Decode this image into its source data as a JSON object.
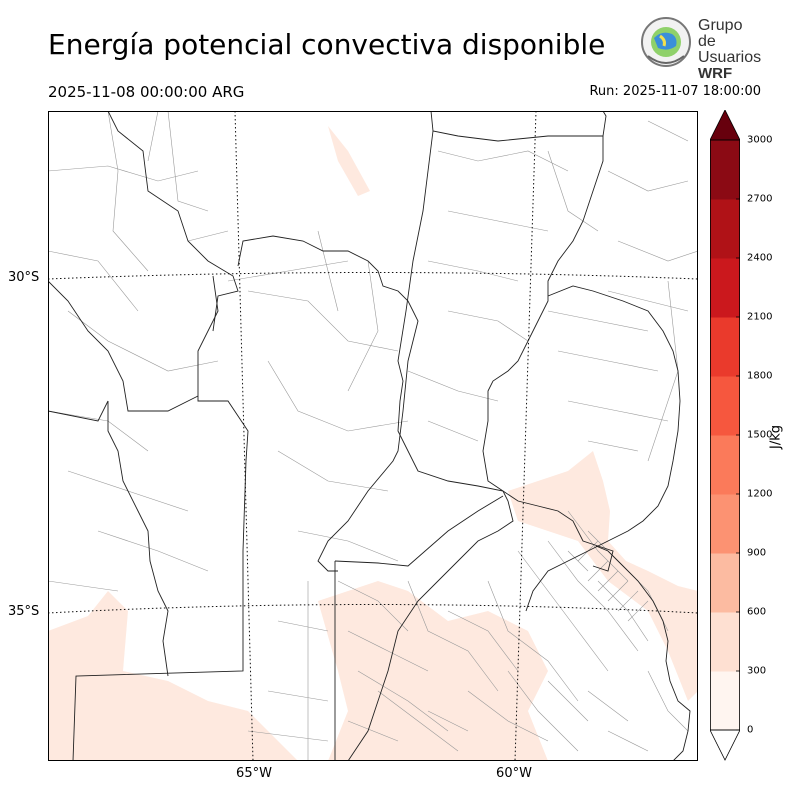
{
  "header": {
    "title": "Energía potencial convectiva disponible",
    "valid_time": "2025-11-08 00:00:00 ARG",
    "run_time": "Run: 2025-11-07 18:00:00"
  },
  "logo": {
    "line1": "Grupo de",
    "line2": "Usuarios",
    "line3": "WRF"
  },
  "map": {
    "lat_labels": [
      "30°S",
      "35°S"
    ],
    "lon_labels": [
      "65°W",
      "60°W"
    ],
    "background": "#ffffff",
    "fill_color": "#fee9df"
  },
  "colorbar": {
    "unit": "J/kg",
    "ticks": [
      "0",
      "300",
      "600",
      "900",
      "1200",
      "1500",
      "1800",
      "2100",
      "2400",
      "2700",
      "3000"
    ],
    "colors": [
      "#fff5f0",
      "#fee0d2",
      "#fcbba1",
      "#fc9272",
      "#fb7a5a",
      "#f6573e",
      "#ea3a2c",
      "#cb181d",
      "#b01217",
      "#8b0a14",
      "#67000d"
    ],
    "over_color": "#67000d"
  }
}
